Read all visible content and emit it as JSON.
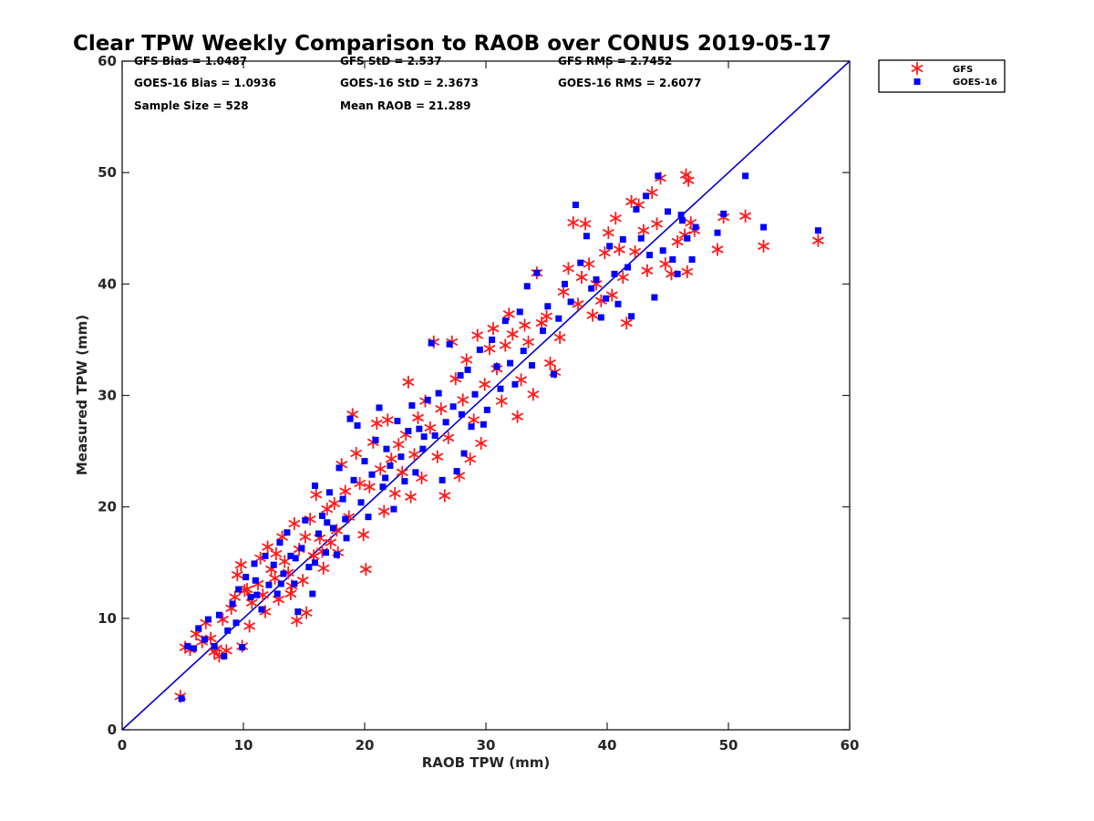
{
  "chart_data": {
    "type": "scatter",
    "title": "Clear TPW Weekly Comparison to RAOB over CONUS 2019-05-17",
    "xlabel": "RAOB TPW (mm)",
    "ylabel": "Measured TPW (mm)",
    "xlim": [
      0,
      60
    ],
    "ylim": [
      0,
      60
    ],
    "xticks": [
      "0",
      "10",
      "20",
      "30",
      "40",
      "50",
      "60"
    ],
    "yticks": [
      "0",
      "10",
      "20",
      "30",
      "40",
      "50",
      "60"
    ],
    "grid": false,
    "legend_position": "top-right outside",
    "stats": [
      [
        "GFS Bias = 1.0487",
        "GFS StD = 2.537",
        "GFS RMS = 2.7452"
      ],
      [
        "GOES-16 Bias = 1.0936",
        "GOES-16 StD = 2.3673",
        "GOES-16 RMS = 2.6077"
      ],
      [
        "Sample Size = 528",
        "Mean RAOB = 21.289"
      ]
    ],
    "reference_line": {
      "name": "1:1 line",
      "x": [
        0,
        60
      ],
      "y": [
        0,
        60
      ],
      "color": "#0000cc"
    },
    "series": [
      {
        "name": "GFS",
        "marker": "asterisk",
        "color": "#ff1a1a",
        "points": [
          [
            4.8,
            3.0
          ],
          [
            5.2,
            7.4
          ],
          [
            5.6,
            7.2
          ],
          [
            6.1,
            8.6
          ],
          [
            6.6,
            7.9
          ],
          [
            6.9,
            9.6
          ],
          [
            7.3,
            8.2
          ],
          [
            7.8,
            7.3
          ],
          [
            8.0,
            6.6
          ],
          [
            8.3,
            9.9
          ],
          [
            8.6,
            7.1
          ],
          [
            9.0,
            10.9
          ],
          [
            9.3,
            11.9
          ],
          [
            9.5,
            13.9
          ],
          [
            9.8,
            14.8
          ],
          [
            9.9,
            7.5
          ],
          [
            10.3,
            12.6
          ],
          [
            10.5,
            9.3
          ],
          [
            10.7,
            11.4
          ],
          [
            11.2,
            13.1
          ],
          [
            11.4,
            15.4
          ],
          [
            11.6,
            12.1
          ],
          [
            11.8,
            10.6
          ],
          [
            12.0,
            16.4
          ],
          [
            12.3,
            14.4
          ],
          [
            12.6,
            13.6
          ],
          [
            12.9,
            11.7
          ],
          [
            13.2,
            17.3
          ],
          [
            13.4,
            15.1
          ],
          [
            13.7,
            14.1
          ],
          [
            14.0,
            12.9
          ],
          [
            14.2,
            18.5
          ],
          [
            14.4,
            9.8
          ],
          [
            14.6,
            16.2
          ],
          [
            14.9,
            13.4
          ],
          [
            15.2,
            10.5
          ],
          [
            15.5,
            18.9
          ],
          [
            15.8,
            15.6
          ],
          [
            16.0,
            21.1
          ],
          [
            16.3,
            17.2
          ],
          [
            16.6,
            14.5
          ],
          [
            16.9,
            19.8
          ],
          [
            17.2,
            16.8
          ],
          [
            17.5,
            20.3
          ],
          [
            17.8,
            15.9
          ],
          [
            18.1,
            23.8
          ],
          [
            18.4,
            21.4
          ],
          [
            18.7,
            19.1
          ],
          [
            19.0,
            28.3
          ],
          [
            19.3,
            24.8
          ],
          [
            19.6,
            22.1
          ],
          [
            19.9,
            17.5
          ],
          [
            20.1,
            14.4
          ],
          [
            20.4,
            21.8
          ],
          [
            20.7,
            25.8
          ],
          [
            21.0,
            27.5
          ],
          [
            21.3,
            23.4
          ],
          [
            21.6,
            19.6
          ],
          [
            21.9,
            27.8
          ],
          [
            22.2,
            24.3
          ],
          [
            22.5,
            21.2
          ],
          [
            22.8,
            25.6
          ],
          [
            23.1,
            23.1
          ],
          [
            23.4,
            26.5
          ],
          [
            23.6,
            31.2
          ],
          [
            23.8,
            20.9
          ],
          [
            24.1,
            24.7
          ],
          [
            24.4,
            28.0
          ],
          [
            24.7,
            22.6
          ],
          [
            25.0,
            29.5
          ],
          [
            25.4,
            27.1
          ],
          [
            25.7,
            34.8
          ],
          [
            26.0,
            24.5
          ],
          [
            26.3,
            28.8
          ],
          [
            26.6,
            21.0
          ],
          [
            26.9,
            26.2
          ],
          [
            27.2,
            34.8
          ],
          [
            27.5,
            31.5
          ],
          [
            27.8,
            22.8
          ],
          [
            28.1,
            29.6
          ],
          [
            28.4,
            33.2
          ],
          [
            28.7,
            24.3
          ],
          [
            29.0,
            27.8
          ],
          [
            29.3,
            35.4
          ],
          [
            29.6,
            25.7
          ],
          [
            29.9,
            31.0
          ],
          [
            30.3,
            34.2
          ],
          [
            30.6,
            36.0
          ],
          [
            30.9,
            32.4
          ],
          [
            31.3,
            29.5
          ],
          [
            31.6,
            34.5
          ],
          [
            31.9,
            37.3
          ],
          [
            32.2,
            35.5
          ],
          [
            32.6,
            28.1
          ],
          [
            32.9,
            31.4
          ],
          [
            33.2,
            36.3
          ],
          [
            33.5,
            34.8
          ],
          [
            33.9,
            30.1
          ],
          [
            34.2,
            41.0
          ],
          [
            34.6,
            36.5
          ],
          [
            35.0,
            37.1
          ],
          [
            35.3,
            32.9
          ],
          [
            35.7,
            32.1
          ],
          [
            36.1,
            35.2
          ],
          [
            36.4,
            39.3
          ],
          [
            36.8,
            41.4
          ],
          [
            37.2,
            45.5
          ],
          [
            37.6,
            38.2
          ],
          [
            37.9,
            40.6
          ],
          [
            38.2,
            45.4
          ],
          [
            38.5,
            41.8
          ],
          [
            38.8,
            37.2
          ],
          [
            39.1,
            40.0
          ],
          [
            39.5,
            38.5
          ],
          [
            39.8,
            42.8
          ],
          [
            40.1,
            44.6
          ],
          [
            40.4,
            39.0
          ],
          [
            40.7,
            45.9
          ],
          [
            41.0,
            43.1
          ],
          [
            41.3,
            40.6
          ],
          [
            41.6,
            36.5
          ],
          [
            42.0,
            47.4
          ],
          [
            42.3,
            42.9
          ],
          [
            42.6,
            47.1
          ],
          [
            43.0,
            44.8
          ],
          [
            43.3,
            41.2
          ],
          [
            43.7,
            48.2
          ],
          [
            44.1,
            45.4
          ],
          [
            44.4,
            49.5
          ],
          [
            44.8,
            41.8
          ],
          [
            45.3,
            40.9
          ],
          [
            45.8,
            43.8
          ],
          [
            46.4,
            44.4
          ],
          [
            46.6,
            41.1
          ],
          [
            46.9,
            45.5
          ],
          [
            46.7,
            49.3
          ],
          [
            47.2,
            44.8
          ],
          [
            49.1,
            43.1
          ],
          [
            49.6,
            46.0
          ],
          [
            51.4,
            46.1
          ],
          [
            52.9,
            43.4
          ],
          [
            57.4,
            43.9
          ],
          [
            46.5,
            49.8
          ],
          [
            7.6,
            7.0
          ],
          [
            10.1,
            12.5
          ],
          [
            12.7,
            15.8
          ],
          [
            13.9,
            12.2
          ],
          [
            15.1,
            17.3
          ],
          [
            16.5,
            16.0
          ],
          [
            17.7,
            17.9
          ]
        ]
      },
      {
        "name": "GOES-16",
        "marker": "square",
        "color": "#0000ff",
        "points": [
          [
            4.9,
            2.8
          ],
          [
            5.4,
            7.5
          ],
          [
            5.9,
            7.3
          ],
          [
            6.3,
            9.1
          ],
          [
            6.8,
            8.1
          ],
          [
            7.1,
            9.9
          ],
          [
            7.6,
            7.5
          ],
          [
            8.0,
            10.3
          ],
          [
            8.4,
            6.6
          ],
          [
            8.7,
            8.9
          ],
          [
            9.1,
            11.3
          ],
          [
            9.6,
            12.6
          ],
          [
            9.9,
            7.4
          ],
          [
            10.2,
            13.7
          ],
          [
            10.6,
            11.9
          ],
          [
            10.9,
            14.9
          ],
          [
            11.1,
            12.1
          ],
          [
            11.5,
            10.8
          ],
          [
            11.8,
            15.6
          ],
          [
            12.1,
            13.0
          ],
          [
            12.5,
            14.8
          ],
          [
            12.8,
            12.2
          ],
          [
            13.0,
            16.8
          ],
          [
            13.3,
            14.0
          ],
          [
            13.6,
            17.7
          ],
          [
            13.9,
            15.6
          ],
          [
            14.2,
            13.1
          ],
          [
            14.5,
            10.6
          ],
          [
            14.8,
            16.3
          ],
          [
            15.1,
            18.8
          ],
          [
            15.4,
            14.6
          ],
          [
            15.7,
            12.2
          ],
          [
            15.9,
            21.9
          ],
          [
            16.2,
            17.6
          ],
          [
            16.5,
            19.2
          ],
          [
            16.8,
            15.9
          ],
          [
            17.1,
            21.3
          ],
          [
            17.4,
            18.1
          ],
          [
            17.7,
            15.7
          ],
          [
            17.9,
            23.5
          ],
          [
            18.2,
            20.7
          ],
          [
            18.5,
            17.2
          ],
          [
            18.8,
            27.9
          ],
          [
            19.1,
            22.4
          ],
          [
            19.4,
            27.3
          ],
          [
            19.7,
            20.4
          ],
          [
            20.0,
            24.1
          ],
          [
            20.3,
            19.1
          ],
          [
            20.6,
            22.9
          ],
          [
            20.9,
            26.0
          ],
          [
            21.2,
            28.9
          ],
          [
            21.5,
            21.8
          ],
          [
            21.8,
            25.2
          ],
          [
            22.1,
            23.7
          ],
          [
            22.4,
            19.8
          ],
          [
            22.7,
            27.7
          ],
          [
            23.0,
            24.5
          ],
          [
            23.3,
            22.3
          ],
          [
            23.6,
            26.8
          ],
          [
            23.9,
            29.1
          ],
          [
            24.2,
            23.1
          ],
          [
            24.5,
            27.0
          ],
          [
            24.8,
            25.2
          ],
          [
            25.2,
            29.6
          ],
          [
            25.5,
            34.7
          ],
          [
            25.8,
            26.4
          ],
          [
            26.1,
            30.2
          ],
          [
            26.4,
            22.4
          ],
          [
            26.7,
            27.6
          ],
          [
            27.0,
            34.6
          ],
          [
            27.3,
            29.0
          ],
          [
            27.6,
            23.2
          ],
          [
            27.9,
            31.8
          ],
          [
            28.2,
            24.8
          ],
          [
            28.5,
            32.3
          ],
          [
            28.8,
            27.2
          ],
          [
            29.1,
            30.1
          ],
          [
            29.5,
            34.1
          ],
          [
            29.8,
            27.4
          ],
          [
            30.1,
            28.7
          ],
          [
            30.5,
            35.0
          ],
          [
            30.9,
            32.6
          ],
          [
            31.2,
            30.6
          ],
          [
            31.6,
            36.7
          ],
          [
            32.0,
            32.9
          ],
          [
            32.4,
            31.0
          ],
          [
            32.8,
            37.5
          ],
          [
            33.1,
            34.0
          ],
          [
            33.4,
            39.8
          ],
          [
            33.8,
            32.7
          ],
          [
            34.2,
            41.0
          ],
          [
            34.7,
            35.8
          ],
          [
            35.1,
            38.0
          ],
          [
            35.6,
            31.9
          ],
          [
            36.0,
            36.9
          ],
          [
            36.5,
            40.0
          ],
          [
            37.0,
            38.4
          ],
          [
            37.4,
            47.1
          ],
          [
            37.8,
            41.9
          ],
          [
            38.3,
            44.3
          ],
          [
            38.7,
            39.6
          ],
          [
            39.1,
            40.4
          ],
          [
            39.5,
            37.0
          ],
          [
            39.9,
            38.7
          ],
          [
            40.2,
            43.4
          ],
          [
            40.6,
            40.9
          ],
          [
            40.9,
            38.2
          ],
          [
            41.3,
            44.0
          ],
          [
            41.7,
            41.5
          ],
          [
            42.0,
            37.1
          ],
          [
            42.4,
            46.7
          ],
          [
            42.8,
            44.1
          ],
          [
            43.2,
            47.9
          ],
          [
            43.5,
            42.6
          ],
          [
            43.9,
            38.8
          ],
          [
            44.2,
            49.7
          ],
          [
            44.6,
            43.0
          ],
          [
            45.0,
            46.5
          ],
          [
            45.4,
            42.2
          ],
          [
            45.8,
            40.9
          ],
          [
            46.2,
            45.7
          ],
          [
            46.6,
            44.1
          ],
          [
            47.0,
            42.2
          ],
          [
            47.3,
            45.1
          ],
          [
            49.1,
            44.6
          ],
          [
            49.6,
            46.3
          ],
          [
            51.4,
            49.7
          ],
          [
            52.9,
            45.1
          ],
          [
            57.4,
            44.8
          ],
          [
            46.1,
            46.2
          ],
          [
            9.4,
            9.6
          ],
          [
            11.0,
            13.4
          ],
          [
            13.1,
            13.1
          ],
          [
            14.3,
            15.4
          ],
          [
            15.9,
            15.0
          ],
          [
            16.9,
            18.6
          ],
          [
            18.4,
            18.9
          ],
          [
            21.7,
            22.6
          ],
          [
            24.9,
            26.3
          ],
          [
            28.0,
            28.3
          ]
        ]
      }
    ]
  }
}
